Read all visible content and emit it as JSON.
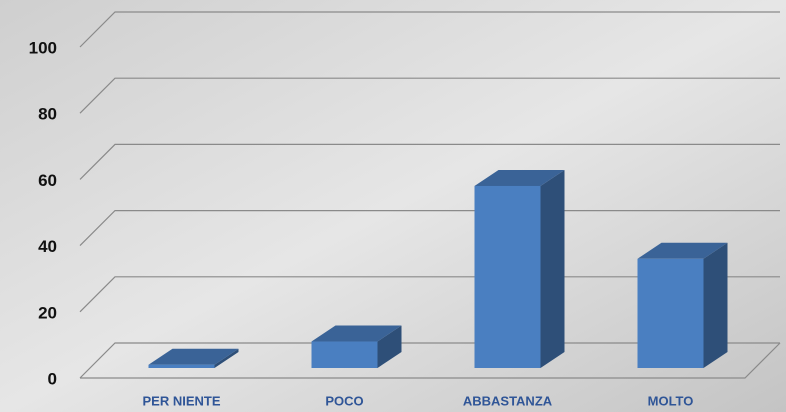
{
  "chart_data": {
    "type": "bar3d",
    "categories": [
      "PER NIENTE",
      "POCO",
      "ABBASTANZA",
      "MOLTO"
    ],
    "values": [
      1,
      8,
      55,
      33
    ],
    "color": "#4a7fc1",
    "ylim": [
      0,
      100
    ],
    "yticks": [
      0,
      20,
      40,
      60,
      80,
      100
    ],
    "grid": true
  }
}
